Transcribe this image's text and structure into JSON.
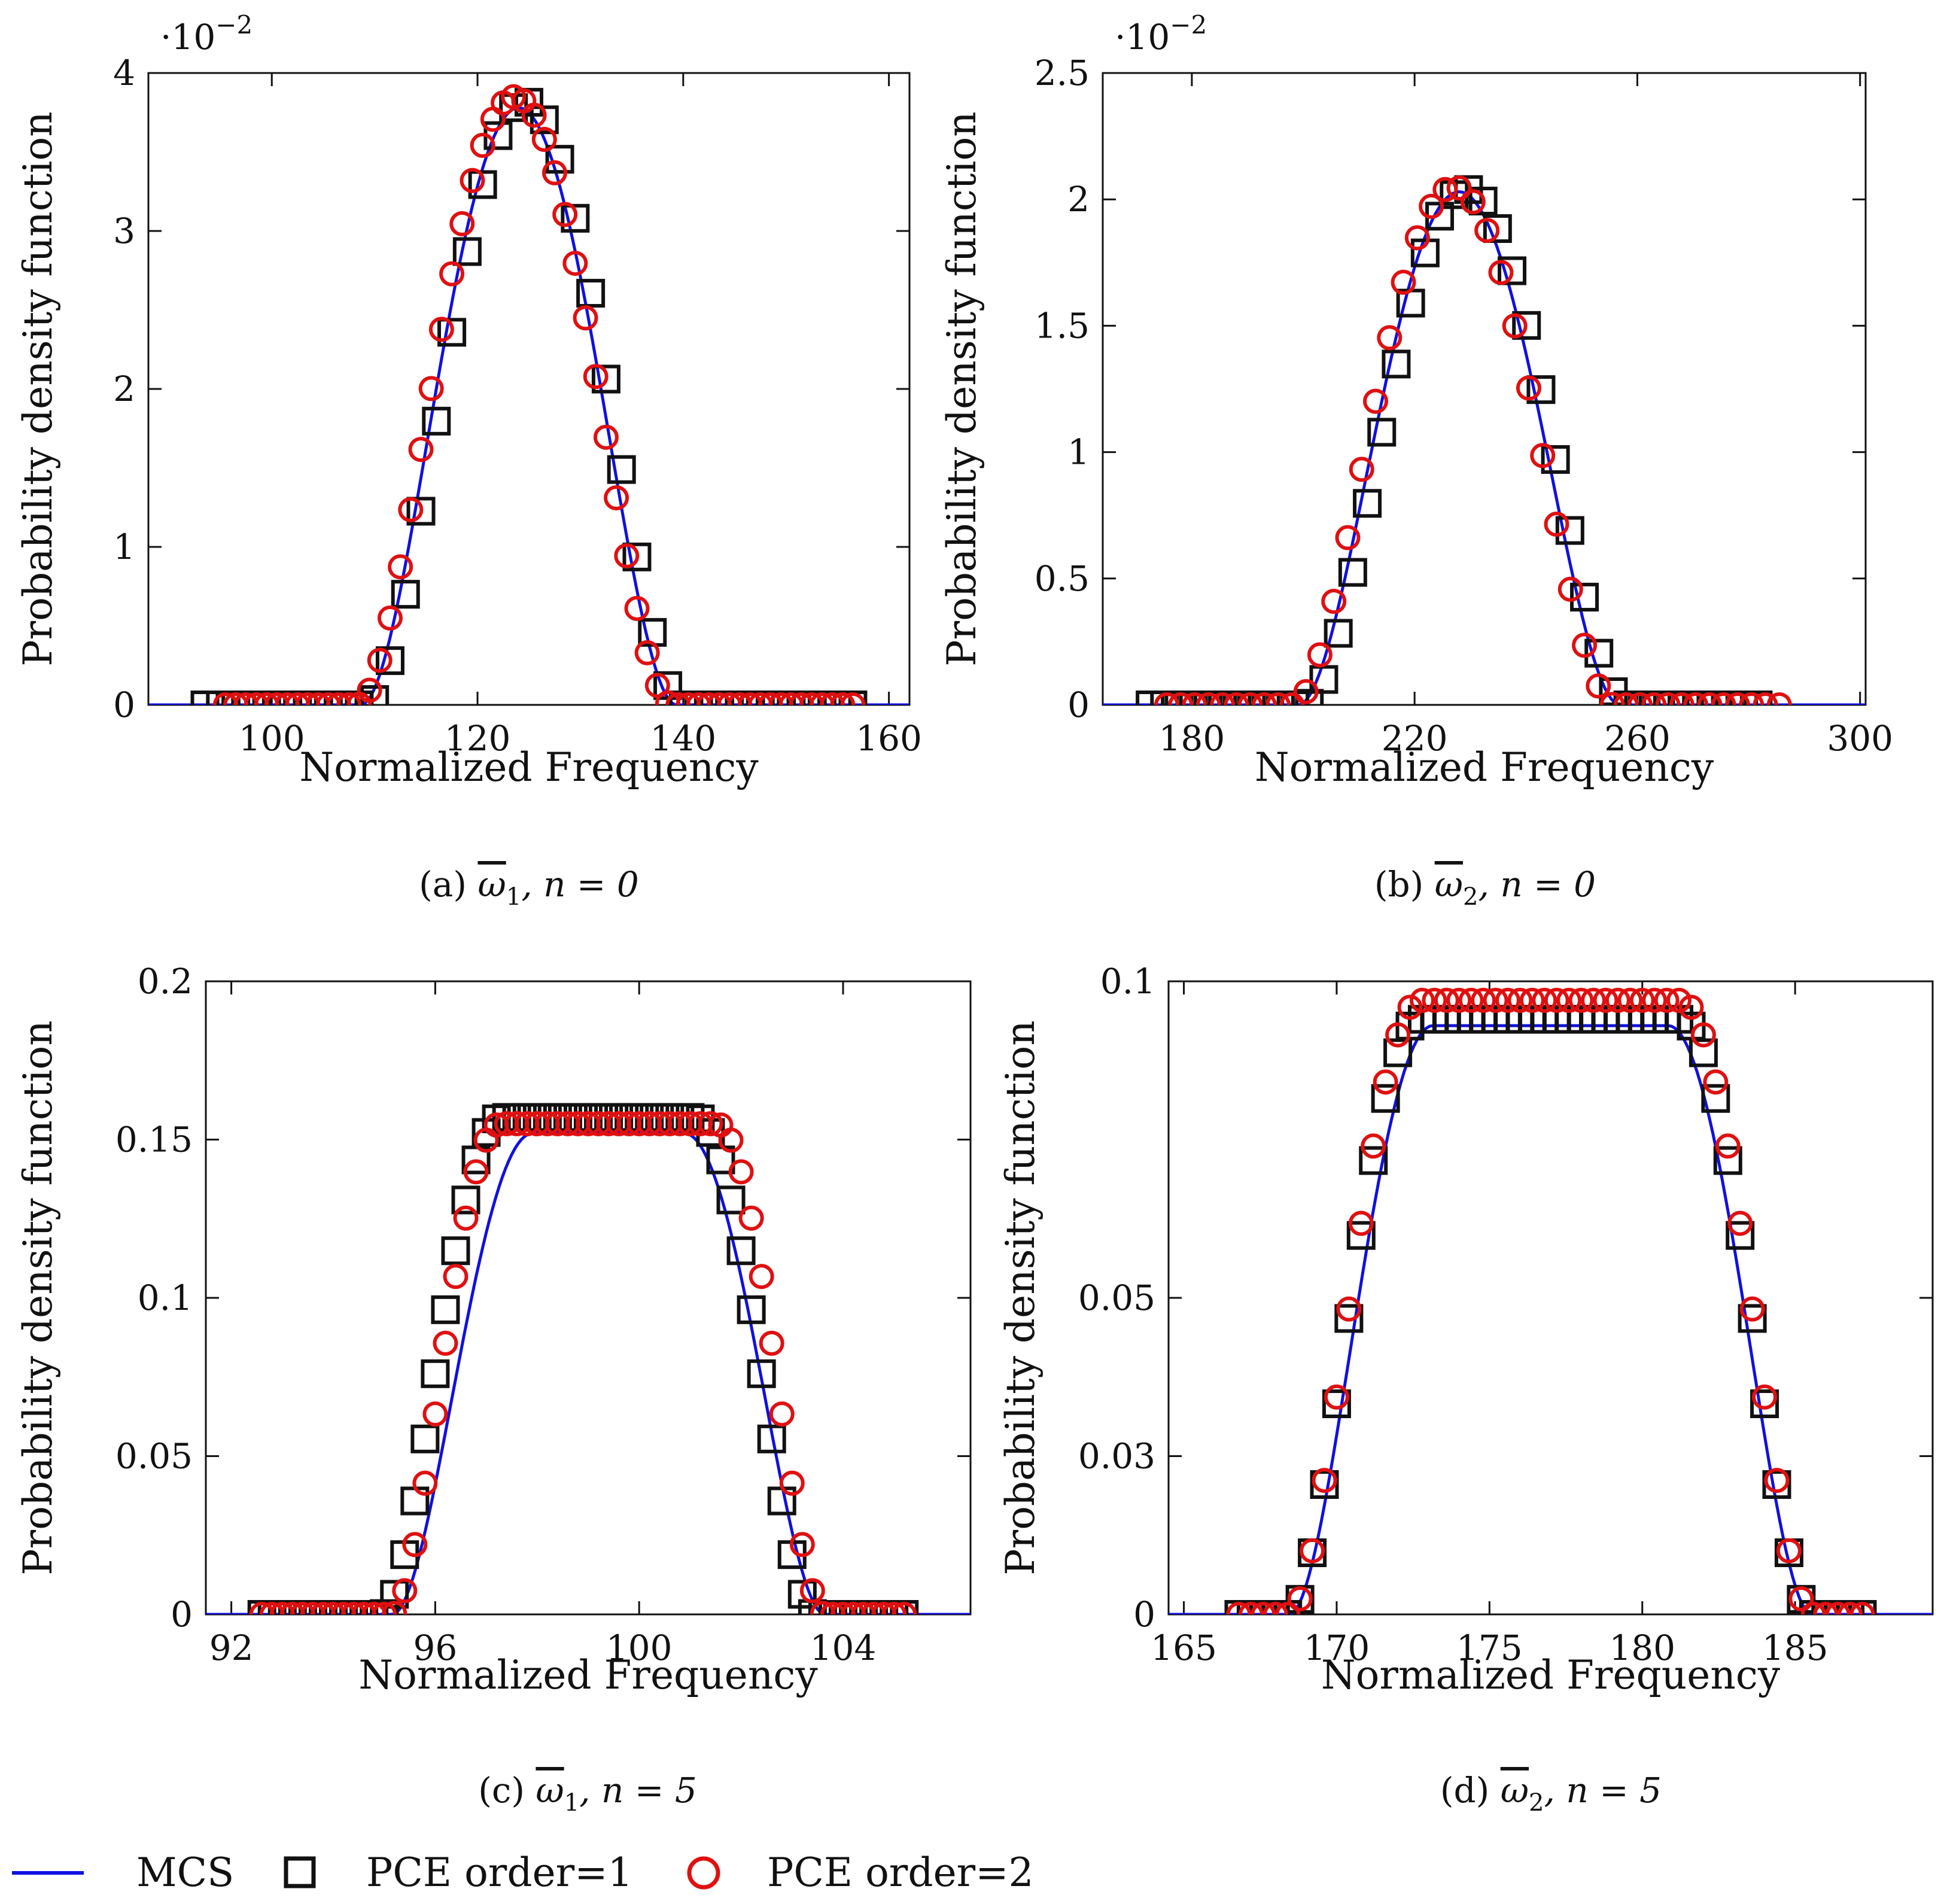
{
  "legend": {
    "mcs": "MCS",
    "pce1": "PCE order=1",
    "pce2": "PCE order=2"
  },
  "colors": {
    "mcs": "#1010e0",
    "pce1": "#111111",
    "pce2": "#e01010"
  },
  "chart_data": [
    {
      "id": "a",
      "type": "line",
      "caption_prefix": "(a)",
      "caption_var": "ω",
      "caption_sub": "1",
      "caption_cond": ", n = 0",
      "xlabel": "Normalized Frequency",
      "ylabel": "Probability density function",
      "y_scale_label": "·10",
      "y_scale_exp": "−2",
      "xlim": [
        88,
        162
      ],
      "ylim": [
        0,
        4
      ],
      "xticks": [
        100,
        120,
        140,
        160
      ],
      "yticks": [
        0,
        1,
        2,
        3,
        4
      ],
      "ytick_labels": [
        "0",
        "1",
        "2",
        "3",
        "4"
      ],
      "grid": false,
      "mcs_pdf": {
        "mean": 124,
        "spread": 26,
        "peak": 3.78
      },
      "pce1_pdf": {
        "mean": 124,
        "spread": 26,
        "peak": 3.82,
        "shift": 0.6
      },
      "pce2_pdf": {
        "mean": 124,
        "spread": 26,
        "peak": 3.85,
        "shift": -0.4
      },
      "pce1_x": [
        93.5,
        156.5,
        1.5
      ],
      "pce2_x": [
        95.5,
        157.0,
        1.0
      ]
    },
    {
      "id": "b",
      "type": "line",
      "caption_prefix": "(b)",
      "caption_var": "ω",
      "caption_sub": "2",
      "caption_cond": ", n = 0",
      "xlabel": "Normalized Frequency",
      "ylabel": "Probability density function",
      "y_scale_label": "·10",
      "y_scale_exp": "−2",
      "xlim": [
        164,
        301
      ],
      "ylim": [
        0,
        2.5
      ],
      "xticks": [
        180,
        220,
        260,
        300
      ],
      "yticks": [
        0,
        0.5,
        1,
        1.5,
        2,
        2.5
      ],
      "ytick_labels": [
        "0",
        "0.5",
        "1",
        "1.5",
        "2",
        "2.5"
      ],
      "grid": false,
      "mcs_pdf": {
        "mean": 228,
        "spread": 49,
        "peak": 2.03
      },
      "pce1_pdf": {
        "mean": 228,
        "spread": 49,
        "peak": 2.04,
        "shift": 1.2
      },
      "pce2_pdf": {
        "mean": 228,
        "spread": 49,
        "peak": 2.05,
        "shift": -1.0
      },
      "pce1_x": [
        172.5,
        284,
        2.6
      ],
      "pce2_x": [
        175.5,
        287.5,
        2.5
      ]
    },
    {
      "id": "c",
      "type": "line",
      "caption_prefix": "(c)",
      "caption_var": "ω",
      "caption_sub": "1",
      "caption_cond": ", n = 5",
      "xlabel": "Normalized Frequency",
      "ylabel": "Probability density function",
      "y_scale_label": "",
      "y_scale_exp": "",
      "xlim": [
        91.5,
        106.5
      ],
      "ylim": [
        0,
        0.2
      ],
      "xticks": [
        92,
        96,
        100,
        104
      ],
      "yticks": [
        0,
        0.05,
        0.1,
        0.15,
        0.2
      ],
      "ytick_labels": [
        "0",
        "0.05",
        "0.1",
        "0.15",
        "0.2"
      ],
      "grid": false,
      "mcs_pdf": {
        "mean": 99.4,
        "spread": 7.2,
        "peak": 0.152,
        "flat": 0.35
      },
      "pce1_pdf": {
        "mean": 99.2,
        "spread": 7.2,
        "peak": 0.157,
        "flat": 0.45,
        "shift": 0
      },
      "pce2_pdf": {
        "mean": 99.4,
        "spread": 7.2,
        "peak": 0.155,
        "flat": 0.5,
        "shift": 0
      },
      "pce1_x": [
        92.6,
        105.3,
        0.2
      ],
      "pce2_x": [
        92.6,
        105.3,
        0.2
      ]
    },
    {
      "id": "d",
      "type": "line",
      "caption_prefix": "(d)",
      "caption_var": "ω",
      "caption_sub": "2",
      "caption_cond": ", n = 5",
      "xlabel": "Normalized Frequency",
      "ylabel": "Probability density function",
      "y_scale_label": "",
      "y_scale_exp": "",
      "xlim": [
        164.5,
        189.5
      ],
      "ylim": [
        0,
        0.1
      ],
      "xticks": [
        165,
        170,
        175,
        180,
        185
      ],
      "yticks": [
        0,
        0.03,
        0.05,
        0.1
      ],
      "ytick_labels": [
        "0",
        "0.03",
        "0.05",
        "0.1"
      ],
      "ytick_positions": [
        0,
        0.025,
        0.05,
        0.1
      ],
      "grid": false,
      "mcs_pdf": {
        "mean": 177,
        "spread": 14.5,
        "peak": 0.093,
        "flat": 0.45
      },
      "pce1_pdf": {
        "mean": 177,
        "spread": 14.5,
        "peak": 0.094,
        "flat": 0.5,
        "shift": 0
      },
      "pce2_pdf": {
        "mean": 177,
        "spread": 14.5,
        "peak": 0.097,
        "flat": 0.5,
        "shift": 0
      },
      "pce1_x": [
        166.8,
        187.2,
        0.4
      ],
      "pce2_x": [
        166.8,
        187.2,
        0.4
      ]
    }
  ]
}
